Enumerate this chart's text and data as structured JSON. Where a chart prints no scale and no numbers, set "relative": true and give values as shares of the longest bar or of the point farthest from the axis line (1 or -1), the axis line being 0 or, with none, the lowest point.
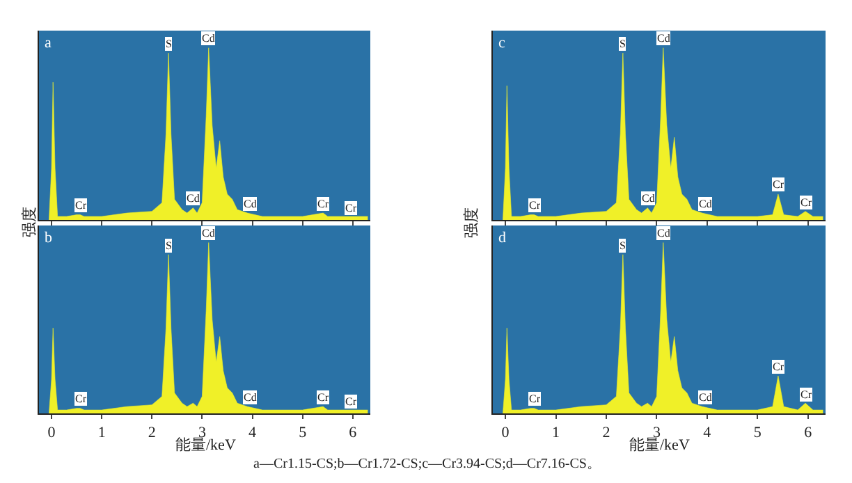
{
  "chart_data": [
    {
      "type": "area",
      "title": "a",
      "ylabel": "强度",
      "relative": true,
      "xlim": [
        -0.25,
        6.35
      ],
      "xticks": [
        0,
        1,
        2,
        3,
        4,
        5,
        6
      ],
      "tick_labels": false,
      "grid": false,
      "x": [
        -0.05,
        0,
        0.03,
        0.07,
        0.12,
        0.3,
        0.5,
        0.57,
        0.65,
        1.0,
        1.5,
        2.0,
        2.2,
        2.28,
        2.33,
        2.38,
        2.45,
        2.6,
        2.7,
        2.82,
        2.9,
        3.0,
        3.08,
        3.13,
        3.2,
        3.28,
        3.35,
        3.42,
        3.5,
        3.6,
        3.7,
        3.9,
        4.2,
        5.0,
        5.41,
        5.5,
        5.95,
        6.3
      ],
      "series": [
        {
          "color": "#f0f028",
          "values": [
            0,
            0.3,
            0.8,
            0.3,
            0.02,
            0.02,
            0.03,
            0.03,
            0.02,
            0.02,
            0.04,
            0.05,
            0.1,
            0.5,
            0.97,
            0.5,
            0.12,
            0.06,
            0.04,
            0.07,
            0.04,
            0.1,
            0.6,
            1.0,
            0.55,
            0.3,
            0.46,
            0.25,
            0.15,
            0.12,
            0.06,
            0.04,
            0.02,
            0.02,
            0.04,
            0.02,
            0.02,
            0.02
          ]
        }
      ],
      "annotations": [
        {
          "text": "S",
          "x": 2.33,
          "y": 0.97
        },
        {
          "text": "Cd",
          "x": 3.13,
          "y": 1.0
        },
        {
          "text": "Cr",
          "x": 0.57,
          "y": 0.03
        },
        {
          "text": "Cd",
          "x": 2.82,
          "y": 0.07
        },
        {
          "text": "Cd",
          "x": 3.95,
          "y": 0.04
        },
        {
          "text": "Cr",
          "x": 5.41,
          "y": 0.04
        },
        {
          "text": "Cr",
          "x": 5.95,
          "y": 0.02
        }
      ]
    },
    {
      "type": "area",
      "title": "b",
      "xlabel": "能量/keV",
      "relative": true,
      "xlim": [
        -0.25,
        6.35
      ],
      "xticks": [
        0,
        1,
        2,
        3,
        4,
        5,
        6
      ],
      "tick_labels": "x",
      "grid": false,
      "x": [
        -0.05,
        0,
        0.03,
        0.07,
        0.12,
        0.3,
        0.5,
        0.57,
        0.65,
        1.0,
        1.5,
        2.0,
        2.2,
        2.28,
        2.33,
        2.38,
        2.45,
        2.6,
        2.7,
        2.82,
        2.9,
        3.0,
        3.08,
        3.13,
        3.2,
        3.28,
        3.35,
        3.42,
        3.5,
        3.6,
        3.7,
        3.9,
        4.2,
        5.0,
        5.41,
        5.5,
        5.95,
        6.3
      ],
      "series": [
        {
          "color": "#f0f028",
          "values": [
            0,
            0.2,
            0.5,
            0.2,
            0.02,
            0.02,
            0.03,
            0.03,
            0.02,
            0.02,
            0.04,
            0.05,
            0.1,
            0.5,
            0.93,
            0.5,
            0.12,
            0.06,
            0.04,
            0.06,
            0.04,
            0.1,
            0.6,
            1.0,
            0.55,
            0.3,
            0.45,
            0.25,
            0.15,
            0.12,
            0.06,
            0.04,
            0.02,
            0.02,
            0.04,
            0.02,
            0.02,
            0.02
          ]
        }
      ],
      "annotations": [
        {
          "text": "S",
          "x": 2.33,
          "y": 0.93
        },
        {
          "text": "Cd",
          "x": 3.13,
          "y": 1.0
        },
        {
          "text": "Cr",
          "x": 0.57,
          "y": 0.03
        },
        {
          "text": "Cd",
          "x": 3.95,
          "y": 0.04
        },
        {
          "text": "Cr",
          "x": 5.41,
          "y": 0.04
        },
        {
          "text": "Cr",
          "x": 5.95,
          "y": 0.02
        }
      ]
    },
    {
      "type": "area",
      "title": "c",
      "ylabel": "强度",
      "relative": true,
      "xlim": [
        -0.25,
        6.35
      ],
      "xticks": [
        0,
        1,
        2,
        3,
        4,
        5,
        6
      ],
      "tick_labels": false,
      "grid": false,
      "x": [
        -0.05,
        0,
        0.03,
        0.07,
        0.12,
        0.3,
        0.5,
        0.57,
        0.65,
        1.0,
        1.5,
        2.0,
        2.2,
        2.28,
        2.33,
        2.38,
        2.45,
        2.6,
        2.7,
        2.82,
        2.9,
        3.0,
        3.08,
        3.13,
        3.2,
        3.28,
        3.35,
        3.42,
        3.5,
        3.6,
        3.7,
        3.9,
        4.2,
        5.0,
        5.3,
        5.41,
        5.52,
        5.8,
        5.95,
        6.1,
        6.3
      ],
      "series": [
        {
          "color": "#f0f028",
          "values": [
            0,
            0.3,
            0.78,
            0.3,
            0.02,
            0.02,
            0.03,
            0.03,
            0.02,
            0.02,
            0.04,
            0.05,
            0.1,
            0.5,
            0.97,
            0.5,
            0.12,
            0.06,
            0.04,
            0.07,
            0.04,
            0.1,
            0.6,
            1.0,
            0.55,
            0.3,
            0.48,
            0.25,
            0.15,
            0.12,
            0.06,
            0.04,
            0.02,
            0.02,
            0.03,
            0.15,
            0.03,
            0.02,
            0.05,
            0.02,
            0.02
          ]
        }
      ],
      "annotations": [
        {
          "text": "S",
          "x": 2.33,
          "y": 0.97
        },
        {
          "text": "Cd",
          "x": 3.13,
          "y": 1.0
        },
        {
          "text": "Cr",
          "x": 0.57,
          "y": 0.03
        },
        {
          "text": "Cd",
          "x": 2.82,
          "y": 0.07
        },
        {
          "text": "Cd",
          "x": 3.95,
          "y": 0.04
        },
        {
          "text": "Cr",
          "x": 5.41,
          "y": 0.15
        },
        {
          "text": "Cr",
          "x": 5.95,
          "y": 0.05
        }
      ]
    },
    {
      "type": "area",
      "title": "d",
      "xlabel": "能量/keV",
      "relative": true,
      "xlim": [
        -0.25,
        6.35
      ],
      "xticks": [
        0,
        1,
        2,
        3,
        4,
        5,
        6
      ],
      "tick_labels": "x",
      "grid": false,
      "x": [
        -0.05,
        0,
        0.03,
        0.07,
        0.12,
        0.3,
        0.5,
        0.57,
        0.65,
        1.0,
        1.5,
        2.0,
        2.2,
        2.28,
        2.33,
        2.38,
        2.45,
        2.6,
        2.7,
        2.82,
        2.9,
        3.0,
        3.08,
        3.13,
        3.2,
        3.28,
        3.35,
        3.42,
        3.5,
        3.6,
        3.7,
        3.9,
        4.2,
        5.0,
        5.3,
        5.41,
        5.52,
        5.8,
        5.95,
        6.1,
        6.3
      ],
      "series": [
        {
          "color": "#f0f028",
          "values": [
            0,
            0.2,
            0.5,
            0.2,
            0.02,
            0.02,
            0.03,
            0.03,
            0.02,
            0.02,
            0.04,
            0.05,
            0.1,
            0.5,
            0.93,
            0.5,
            0.12,
            0.06,
            0.04,
            0.06,
            0.04,
            0.1,
            0.6,
            1.0,
            0.55,
            0.3,
            0.45,
            0.25,
            0.15,
            0.12,
            0.06,
            0.04,
            0.02,
            0.02,
            0.04,
            0.22,
            0.04,
            0.02,
            0.06,
            0.02,
            0.02
          ]
        }
      ],
      "annotations": [
        {
          "text": "S",
          "x": 2.33,
          "y": 0.93
        },
        {
          "text": "Cd",
          "x": 3.13,
          "y": 1.0
        },
        {
          "text": "Cr",
          "x": 0.57,
          "y": 0.03
        },
        {
          "text": "Cd",
          "x": 3.95,
          "y": 0.04
        },
        {
          "text": "Cr",
          "x": 5.41,
          "y": 0.22
        },
        {
          "text": "Cr",
          "x": 5.95,
          "y": 0.06
        },
        "a—Cr1.15-CS;b—Cr1.72-CS;c—Cr3.94-CS;d—Cr7.16-CS。"
      ]
    }
  ]
}
